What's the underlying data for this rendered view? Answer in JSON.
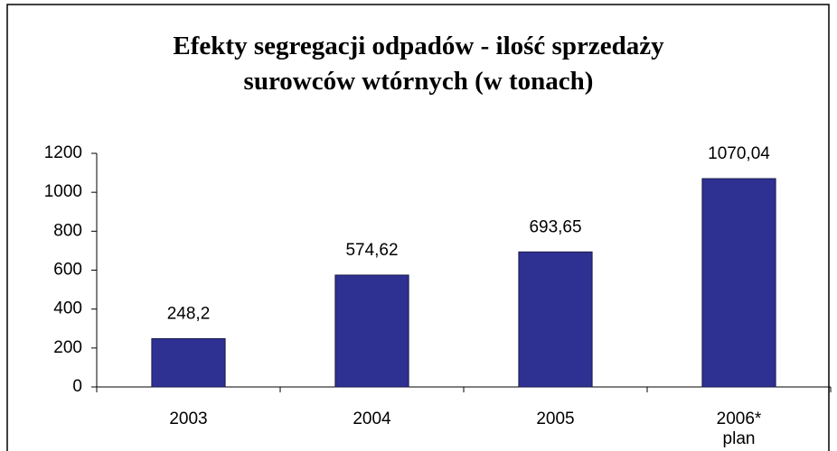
{
  "chart_data": {
    "type": "bar",
    "title": "Efekty segregacji odpadów - ilość sprzedaży\nsurowców wtórnych (w tonach)",
    "categories": [
      "2003",
      "2004",
      "2005",
      "2006*\nplan"
    ],
    "values": [
      248.2,
      574.62,
      693.65,
      1070.04
    ],
    "value_labels": [
      "248,2",
      "574,62",
      "693,65",
      "1070,04"
    ],
    "color": "#2e3192",
    "ylim": [
      0,
      1200
    ],
    "yticks": [
      0,
      200,
      400,
      600,
      800,
      1000,
      1200
    ],
    "grid": false
  }
}
